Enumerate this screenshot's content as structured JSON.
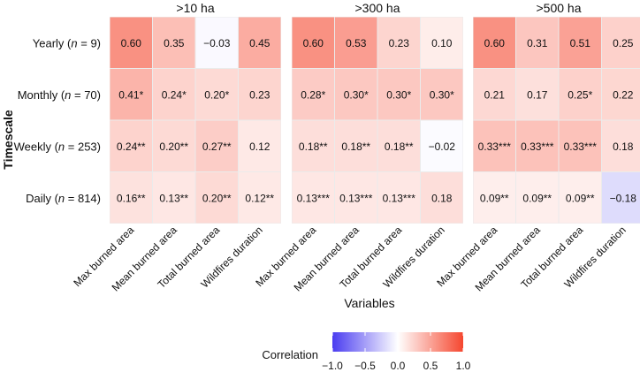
{
  "chart_data": {
    "type": "heatmap",
    "panels": [
      {
        "title": ">10 ha",
        "values": [
          [
            0.6,
            0.35,
            -0.03,
            0.45
          ],
          [
            0.41,
            0.24,
            0.2,
            0.23
          ],
          [
            0.24,
            0.2,
            0.27,
            0.12
          ],
          [
            0.16,
            0.13,
            0.2,
            0.12
          ]
        ],
        "labels": [
          [
            "0.60",
            "0.35",
            "−0.03",
            "0.45"
          ],
          [
            "0.41*",
            "0.24*",
            "0.20*",
            "0.23"
          ],
          [
            "0.24**",
            "0.20**",
            "0.27**",
            "0.12"
          ],
          [
            "0.16**",
            "0.13**",
            "0.20**",
            "0.12**"
          ]
        ]
      },
      {
        "title": ">300 ha",
        "values": [
          [
            0.6,
            0.53,
            0.23,
            0.1
          ],
          [
            0.28,
            0.3,
            0.3,
            0.3
          ],
          [
            0.18,
            0.18,
            0.18,
            -0.02
          ],
          [
            0.13,
            0.13,
            0.13,
            0.18
          ]
        ],
        "labels": [
          [
            "0.60",
            "0.53",
            "0.23",
            "0.10"
          ],
          [
            "0.28*",
            "0.30*",
            "0.30*",
            "0.30*"
          ],
          [
            "0.18**",
            "0.18**",
            "0.18**",
            "−0.02"
          ],
          [
            "0.13***",
            "0.13***",
            "0.13***",
            "0.18"
          ]
        ]
      },
      {
        "title": ">500 ha",
        "values": [
          [
            0.6,
            0.31,
            0.51,
            0.25
          ],
          [
            0.21,
            0.17,
            0.25,
            0.22
          ],
          [
            0.33,
            0.33,
            0.33,
            0.18
          ],
          [
            0.09,
            0.09,
            0.09,
            -0.18
          ]
        ],
        "labels": [
          [
            "0.60",
            "0.31",
            "0.51",
            "0.25"
          ],
          [
            "0.21",
            "0.17",
            "0.25*",
            "0.22"
          ],
          [
            "0.33***",
            "0.33***",
            "0.33***",
            "0.18"
          ],
          [
            "0.09**",
            "0.09**",
            "0.09**",
            "−0.18"
          ]
        ]
      }
    ],
    "rows": [
      {
        "name": "Yearly",
        "n": "9"
      },
      {
        "name": "Monthly",
        "n": "70"
      },
      {
        "name": "Weekly",
        "n": "253"
      },
      {
        "name": "Daily",
        "n": "814"
      }
    ],
    "columns": [
      "Max burned area",
      "Mean burned area",
      "Total burned area",
      "Wildfires duration"
    ],
    "xlabel": "Variables",
    "ylabel": "Timescale",
    "legend": {
      "title": "Correlation",
      "range": [
        -1,
        1
      ],
      "ticks": [
        "−1.0",
        "−0.5",
        "0.0",
        "0.5",
        "1.0"
      ],
      "tick_values": [
        -1,
        -0.5,
        0,
        0.5,
        1
      ],
      "position": "bottom-center"
    },
    "colors": {
      "negative": "#4a3cf0",
      "zero": "#ffffff",
      "positive": "#f5472f"
    }
  }
}
